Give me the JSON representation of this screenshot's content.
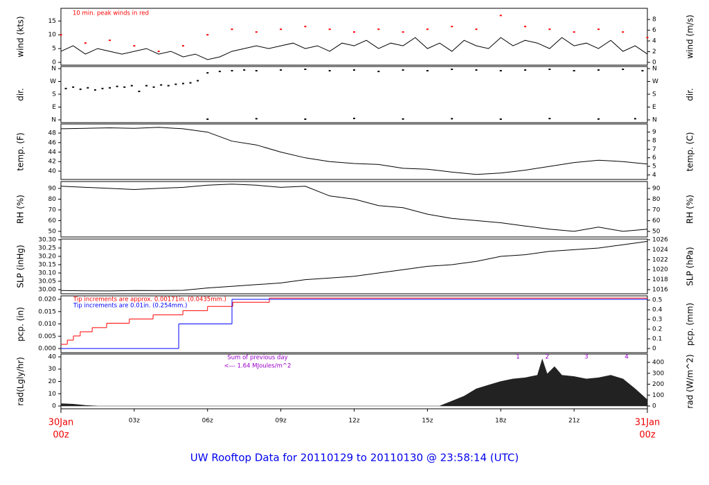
{
  "title": "UW Rooftop Data for 20110129  to  20110130 @ 23:58:14  (UTC)",
  "time_axis": {
    "xlim": [
      0,
      24
    ],
    "xticks": [
      {
        "value": 3,
        "label": "03z"
      },
      {
        "value": 6,
        "label": "06z"
      },
      {
        "value": 9,
        "label": "09z"
      },
      {
        "value": 12,
        "label": "12z"
      },
      {
        "value": 15,
        "label": "15z"
      },
      {
        "value": 18,
        "label": "18z"
      },
      {
        "value": 21,
        "label": "21z"
      }
    ],
    "start": {
      "value": 0,
      "date": "30Jan",
      "time": "00z"
    },
    "end": {
      "value": 24,
      "date": "31Jan",
      "time": "00z"
    }
  },
  "chart_data": [
    {
      "type": "line",
      "ylabel": "wind (kts)",
      "y2label": "wind (m/s)",
      "ylim": [
        -1,
        19.6
      ],
      "yticks": [
        0,
        5,
        10,
        15
      ],
      "y2lim": [
        -0.51,
        10.08
      ],
      "y2ticks": [
        0,
        2,
        4,
        6,
        8
      ],
      "annotations": [
        "10 min. peak winds in red"
      ],
      "series": [
        {
          "type": "line",
          "color": "#000000",
          "x": [
            0,
            0.5,
            1,
            1.5,
            2,
            2.5,
            3,
            3.5,
            4,
            4.5,
            5,
            5.5,
            6,
            6.5,
            7,
            7.5,
            8,
            8.5,
            9,
            9.5,
            10,
            10.5,
            11,
            11.5,
            12,
            12.5,
            13,
            13.5,
            14,
            14.5,
            15,
            15.5,
            16,
            16.5,
            17,
            17.5,
            18,
            18.5,
            19,
            19.5,
            20,
            20.5,
            21,
            21.5,
            22,
            22.5,
            23,
            23.5,
            24
          ],
          "values": [
            4,
            6,
            3,
            5,
            4,
            3,
            4,
            5,
            3,
            4,
            2,
            3,
            1,
            2,
            4,
            5,
            6,
            5,
            6,
            7,
            5,
            6,
            4,
            7,
            6,
            8,
            5,
            7,
            6,
            9,
            5,
            7,
            4,
            8,
            6,
            5,
            9,
            6,
            8,
            7,
            5,
            9,
            6,
            7,
            5,
            8,
            4,
            6,
            3
          ]
        },
        {
          "type": "scatter",
          "color": "#ff0000",
          "x": [
            0,
            1,
            2,
            3,
            4,
            5,
            6,
            7,
            8,
            9,
            10,
            11,
            12,
            13,
            14,
            15,
            16,
            17,
            18,
            19,
            20,
            21,
            22,
            23,
            24
          ],
          "values": [
            10,
            7,
            8,
            6,
            4,
            6,
            10,
            12,
            11,
            12,
            13,
            12,
            11,
            12,
            11,
            12,
            13,
            12,
            17,
            13,
            12,
            11,
            12,
            11,
            9
          ]
        }
      ]
    },
    {
      "type": "line",
      "ylabel": "dir.",
      "y2label": "dir.",
      "ylim": [
        -19.5,
        374.6
      ],
      "yticks": [
        {
          "value": 0,
          "label": "N"
        },
        {
          "value": 90,
          "label": "E"
        },
        {
          "value": 180,
          "label": "S"
        },
        {
          "value": 270,
          "label": "W"
        },
        {
          "value": 360,
          "label": "N"
        }
      ],
      "y2lim": [
        -19.5,
        374.6
      ],
      "y2ticks": [
        {
          "value": 0,
          "label": "N"
        },
        {
          "value": 90,
          "label": "E"
        },
        {
          "value": 180,
          "label": "S"
        },
        {
          "value": 270,
          "label": "W"
        },
        {
          "value": 360,
          "label": "N"
        }
      ],
      "series": [
        {
          "type": "scatter",
          "color": "#000000",
          "x": [
            0.2,
            0.5,
            0.8,
            1.1,
            1.4,
            1.7,
            2.0,
            2.3,
            2.6,
            2.9,
            3.2,
            3.5,
            3.8,
            4.1,
            4.4,
            4.7,
            5.0,
            5.3,
            5.6,
            6.0,
            6.5,
            7,
            7.5,
            8,
            9,
            10,
            11,
            12,
            13,
            14,
            15,
            16,
            17,
            18,
            19,
            20,
            21,
            22,
            23,
            23.8
          ],
          "values": [
            220,
            230,
            215,
            225,
            210,
            220,
            225,
            235,
            230,
            240,
            200,
            240,
            230,
            245,
            240,
            250,
            255,
            260,
            275,
            330,
            340,
            345,
            350,
            345,
            350,
            355,
            345,
            350,
            340,
            350,
            345,
            355,
            350,
            345,
            350,
            355,
            345,
            350,
            355,
            345
          ]
        },
        {
          "type": "scatter",
          "color": "#000000",
          "x": [
            6,
            8,
            10,
            12,
            14,
            16,
            18,
            20,
            22,
            23.5
          ],
          "values": [
            5,
            8,
            5,
            10,
            6,
            8,
            5,
            9,
            6,
            8
          ]
        }
      ]
    },
    {
      "type": "line",
      "ylabel": "temp. (F)",
      "y2label": "temp. (C)",
      "ylim": [
        38.25,
        49.9
      ],
      "yticks": [
        40,
        42,
        44,
        46,
        48
      ],
      "y2lim": [
        3.47,
        9.94
      ],
      "y2ticks": [
        4,
        5,
        6,
        7,
        8,
        9
      ],
      "series": [
        {
          "type": "line",
          "color": "#000000",
          "x": [
            0,
            1,
            2,
            3,
            4,
            5,
            6,
            7,
            8,
            9,
            10,
            11,
            12,
            13,
            14,
            15,
            16,
            17,
            18,
            19,
            20,
            21,
            22,
            23,
            24
          ],
          "values": [
            48.9,
            49.0,
            49.1,
            49.0,
            49.2,
            48.9,
            48.2,
            46.3,
            45.5,
            44.0,
            42.8,
            42.0,
            41.6,
            41.4,
            40.6,
            40.4,
            39.8,
            39.3,
            39.6,
            40.2,
            41.0,
            41.8,
            42.3,
            42.0,
            41.5
          ]
        }
      ]
    },
    {
      "type": "line",
      "ylabel": "RH (%)",
      "y2label": "RH (%)",
      "ylim": [
        44.8,
        96.4
      ],
      "yticks": [
        50,
        60,
        70,
        80,
        90
      ],
      "y2lim": [
        44.8,
        96.4
      ],
      "y2ticks": [
        50,
        60,
        70,
        80,
        90
      ],
      "series": [
        {
          "type": "line",
          "color": "#000000",
          "x": [
            0,
            1,
            2,
            3,
            4,
            5,
            6,
            7,
            8,
            9,
            10,
            11,
            12,
            13,
            14,
            15,
            16,
            17,
            18,
            19,
            20,
            21,
            22,
            23,
            24
          ],
          "values": [
            92,
            91,
            90,
            89,
            90,
            91,
            93,
            94,
            93,
            91,
            92,
            83,
            80,
            74,
            72,
            66,
            62,
            60,
            58,
            55,
            52,
            50,
            54,
            50,
            52
          ]
        }
      ]
    },
    {
      "type": "line",
      "ylabel": "SLP (inHg)",
      "y2label": "SLP (hPa)",
      "ylim": [
        29.975,
        30.304
      ],
      "yticks": [
        {
          "value": 30.0,
          "label": "30.00"
        },
        {
          "value": 30.05,
          "label": "30.05"
        },
        {
          "value": 30.1,
          "label": "30.10"
        },
        {
          "value": 30.15,
          "label": "30.15"
        },
        {
          "value": 30.2,
          "label": "30.20"
        },
        {
          "value": 30.25,
          "label": "30.25"
        },
        {
          "value": 30.3,
          "label": "30.30"
        }
      ],
      "y2lim": [
        1015.17,
        1026.14
      ],
      "y2ticks": [
        1016,
        1018,
        1020,
        1022,
        1024,
        1026
      ],
      "series": [
        {
          "type": "line",
          "color": "#000000",
          "x": [
            0,
            1,
            2,
            3,
            4,
            5,
            6,
            7,
            8,
            9,
            10,
            11,
            12,
            13,
            14,
            15,
            16,
            17,
            18,
            19,
            20,
            21,
            22,
            23,
            24
          ],
          "values": [
            29.995,
            29.993,
            29.992,
            29.995,
            29.994,
            29.996,
            30.01,
            30.02,
            30.03,
            30.04,
            30.06,
            30.07,
            30.08,
            30.1,
            30.12,
            30.14,
            30.15,
            30.17,
            30.2,
            30.21,
            30.23,
            30.24,
            30.25,
            30.27,
            30.29
          ]
        }
      ]
    },
    {
      "type": "line",
      "ylabel": "pcp. (in)",
      "y2label": "pcp. (mm)",
      "ylim": [
        -0.00169,
        0.02141
      ],
      "yticks": [
        {
          "value": 0,
          "label": "0.000"
        },
        {
          "value": 0.005,
          "label": "0.005"
        },
        {
          "value": 0.01,
          "label": "0.010"
        },
        {
          "value": 0.015,
          "label": "0.015"
        },
        {
          "value": 0.02,
          "label": "0.020"
        }
      ],
      "y2lim": [
        -0.043,
        0.5437
      ],
      "y2ticks": [
        0,
        0.1,
        0.2,
        0.3,
        0.4,
        0.5
      ],
      "annotations": [
        "Tip increments are approx. 0.00171in. (0.0435mm.)",
        "Tip increments are 0.01in. (0.254mm.)"
      ],
      "annotation_colors": [
        "#ff0000",
        "#0000ff"
      ],
      "series": [
        {
          "type": "step",
          "color": "#ff0000",
          "x": [
            0,
            0.26,
            0.51,
            0.79,
            1.28,
            1.87,
            2.8,
            3.77,
            4.99,
            6.0,
            7.03,
            8.53
          ],
          "values": [
            0.0017,
            0.0034,
            0.0051,
            0.0068,
            0.0085,
            0.0103,
            0.012,
            0.0137,
            0.0154,
            0.0171,
            0.0188,
            0.0205
          ]
        },
        {
          "type": "step",
          "color": "#0000ff",
          "x": [
            0,
            4.82,
            7.0
          ],
          "values": [
            0,
            0.01,
            0.02
          ]
        }
      ]
    },
    {
      "type": "line",
      "ylabel": "rad(Lgly/hr)",
      "y2label": "rad (W/m^2)",
      "ylim": [
        -2.25,
        42.25
      ],
      "yticks": [
        0,
        10,
        20,
        30,
        40
      ],
      "y2lim": [
        -25.4,
        476.2
      ],
      "y2ticks": [
        0,
        100,
        200,
        300,
        400
      ],
      "annotations": [
        "Sum of previous day",
        "<--- 1.64 MJoules/m^2"
      ],
      "annotation_colors": [
        "#9900cc",
        "#9900cc"
      ],
      "markers": [
        {
          "x": 18.7,
          "label": "1"
        },
        {
          "x": 19.9,
          "label": "2"
        },
        {
          "x": 21.5,
          "label": "3"
        },
        {
          "x": 23.15,
          "label": "4"
        }
      ],
      "marker_color": "#9900cc",
      "series": [
        {
          "type": "area",
          "color": "#222222",
          "x": [
            0,
            0.5,
            1,
            1.5,
            15,
            15.5,
            16,
            16.5,
            17,
            17.5,
            18,
            18.5,
            19,
            19.5,
            19.7,
            19.9,
            20.2,
            20.5,
            21,
            21.5,
            22,
            22.5,
            23,
            23.5,
            24
          ],
          "values": [
            2,
            1.5,
            0.5,
            0,
            0,
            0,
            4,
            8,
            14,
            17,
            20,
            22,
            23,
            25,
            38,
            26,
            32,
            25,
            24,
            22,
            23,
            25,
            22,
            14,
            5
          ]
        }
      ]
    }
  ]
}
